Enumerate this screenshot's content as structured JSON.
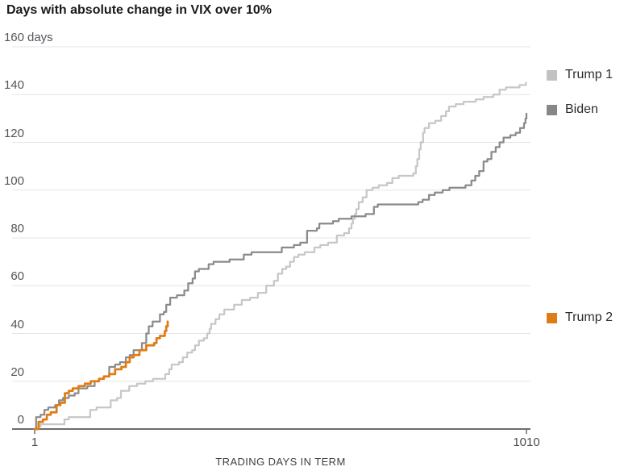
{
  "title": "Days with absolute change in VIX over 10%",
  "chart_data": {
    "type": "line",
    "line_style": "step-after",
    "title": "Days with absolute change in VIX over 10%",
    "xlabel": "TRADING DAYS IN TERM",
    "ylabel": "days",
    "xlim": [
      1,
      1010
    ],
    "ylim": [
      0,
      160
    ],
    "x_ticks": [
      1,
      1010
    ],
    "x_tick_labels": [
      "1",
      "1010"
    ],
    "y_ticks": [
      0,
      20,
      40,
      60,
      80,
      100,
      120,
      140,
      160
    ],
    "y_top_label": "160 days",
    "y_unit_suffix": "days",
    "grid": "horizontal",
    "legend_position": "right",
    "axis_color": "#6d6d6d",
    "grid_color": "#e5e5e5",
    "series": [
      {
        "name": "Trump 1",
        "color": "#c7c7c7",
        "stroke_width": 2.25,
        "points": [
          [
            1,
            0
          ],
          [
            9,
            1
          ],
          [
            13,
            2
          ],
          [
            54,
            2
          ],
          [
            62,
            4
          ],
          [
            71,
            5
          ],
          [
            107,
            5
          ],
          [
            115,
            8
          ],
          [
            128,
            9
          ],
          [
            148,
            9
          ],
          [
            157,
            12
          ],
          [
            170,
            13
          ],
          [
            178,
            16
          ],
          [
            195,
            18
          ],
          [
            211,
            19
          ],
          [
            228,
            20
          ],
          [
            244,
            21
          ],
          [
            269,
            23
          ],
          [
            277,
            25
          ],
          [
            282,
            27
          ],
          [
            297,
            28
          ],
          [
            305,
            30
          ],
          [
            314,
            32
          ],
          [
            324,
            33
          ],
          [
            330,
            35
          ],
          [
            338,
            37
          ],
          [
            348,
            38
          ],
          [
            355,
            40
          ],
          [
            360,
            42
          ],
          [
            363,
            44
          ],
          [
            372,
            46
          ],
          [
            380,
            48
          ],
          [
            390,
            50
          ],
          [
            410,
            52
          ],
          [
            426,
            54
          ],
          [
            443,
            55
          ],
          [
            459,
            57
          ],
          [
            476,
            60
          ],
          [
            492,
            62
          ],
          [
            500,
            65
          ],
          [
            509,
            67
          ],
          [
            517,
            68
          ],
          [
            525,
            70
          ],
          [
            533,
            72
          ],
          [
            542,
            73
          ],
          [
            555,
            74
          ],
          [
            575,
            76
          ],
          [
            587,
            77
          ],
          [
            603,
            78
          ],
          [
            621,
            81
          ],
          [
            636,
            82
          ],
          [
            646,
            84
          ],
          [
            651,
            86
          ],
          [
            654,
            88
          ],
          [
            658,
            90
          ],
          [
            661,
            92
          ],
          [
            666,
            95
          ],
          [
            674,
            97
          ],
          [
            682,
            100
          ],
          [
            694,
            101
          ],
          [
            707,
            102
          ],
          [
            724,
            103
          ],
          [
            735,
            105
          ],
          [
            748,
            106
          ],
          [
            778,
            107
          ],
          [
            783,
            110
          ],
          [
            786,
            113
          ],
          [
            790,
            117
          ],
          [
            793,
            120
          ],
          [
            798,
            124
          ],
          [
            801,
            126
          ],
          [
            810,
            128
          ],
          [
            823,
            129
          ],
          [
            835,
            131
          ],
          [
            845,
            133
          ],
          [
            851,
            135
          ],
          [
            865,
            136
          ],
          [
            881,
            137
          ],
          [
            906,
            138
          ],
          [
            922,
            139
          ],
          [
            942,
            140
          ],
          [
            955,
            142
          ],
          [
            968,
            143
          ],
          [
            988,
            143
          ],
          [
            996,
            144
          ],
          [
            1009,
            145
          ]
        ]
      },
      {
        "name": "Biden",
        "color": "#8b8b8b",
        "stroke_width": 2.25,
        "points": [
          [
            1,
            0
          ],
          [
            4,
            5
          ],
          [
            13,
            6
          ],
          [
            21,
            8
          ],
          [
            29,
            9
          ],
          [
            43,
            10
          ],
          [
            51,
            12
          ],
          [
            59,
            13
          ],
          [
            71,
            14
          ],
          [
            83,
            15
          ],
          [
            91,
            17
          ],
          [
            109,
            18
          ],
          [
            124,
            20
          ],
          [
            133,
            21
          ],
          [
            143,
            22
          ],
          [
            154,
            26
          ],
          [
            166,
            27
          ],
          [
            176,
            28
          ],
          [
            188,
            30
          ],
          [
            196,
            31
          ],
          [
            204,
            33
          ],
          [
            221,
            36
          ],
          [
            230,
            40
          ],
          [
            235,
            43
          ],
          [
            243,
            45
          ],
          [
            258,
            48
          ],
          [
            266,
            49
          ],
          [
            271,
            52
          ],
          [
            279,
            55
          ],
          [
            293,
            56
          ],
          [
            308,
            58
          ],
          [
            316,
            61
          ],
          [
            325,
            63
          ],
          [
            330,
            66
          ],
          [
            338,
            67
          ],
          [
            358,
            69
          ],
          [
            368,
            70
          ],
          [
            401,
            71
          ],
          [
            430,
            73
          ],
          [
            446,
            74
          ],
          [
            508,
            76
          ],
          [
            533,
            77
          ],
          [
            546,
            78
          ],
          [
            560,
            83
          ],
          [
            580,
            84
          ],
          [
            585,
            86
          ],
          [
            613,
            87
          ],
          [
            625,
            88
          ],
          [
            651,
            89
          ],
          [
            680,
            90
          ],
          [
            697,
            93
          ],
          [
            705,
            94
          ],
          [
            788,
            95
          ],
          [
            797,
            96
          ],
          [
            810,
            98
          ],
          [
            822,
            99
          ],
          [
            838,
            100
          ],
          [
            852,
            101
          ],
          [
            885,
            102
          ],
          [
            897,
            104
          ],
          [
            905,
            106
          ],
          [
            913,
            108
          ],
          [
            922,
            112
          ],
          [
            930,
            113
          ],
          [
            938,
            116
          ],
          [
            947,
            118
          ],
          [
            955,
            120
          ],
          [
            963,
            122
          ],
          [
            977,
            123
          ],
          [
            988,
            124
          ],
          [
            997,
            126
          ],
          [
            1005,
            128
          ],
          [
            1008,
            130
          ],
          [
            1010,
            132
          ]
        ]
      },
      {
        "name": "Trump 2",
        "color": "#e07c18",
        "stroke_width": 2.75,
        "points": [
          [
            1,
            0
          ],
          [
            9,
            3
          ],
          [
            18,
            4
          ],
          [
            26,
            6
          ],
          [
            34,
            7
          ],
          [
            46,
            10
          ],
          [
            54,
            11
          ],
          [
            63,
            15
          ],
          [
            71,
            16
          ],
          [
            79,
            17
          ],
          [
            91,
            18
          ],
          [
            104,
            19
          ],
          [
            116,
            20
          ],
          [
            133,
            21
          ],
          [
            143,
            22
          ],
          [
            154,
            23
          ],
          [
            166,
            25
          ],
          [
            179,
            26
          ],
          [
            188,
            28
          ],
          [
            196,
            30
          ],
          [
            204,
            31
          ],
          [
            216,
            33
          ],
          [
            230,
            35
          ],
          [
            246,
            36
          ],
          [
            251,
            38
          ],
          [
            258,
            39
          ],
          [
            268,
            41
          ],
          [
            271,
            43
          ],
          [
            274,
            45
          ]
        ]
      }
    ]
  },
  "legend": {
    "items": [
      {
        "label": "Trump 1",
        "color": "#c2c2c2"
      },
      {
        "label": "Biden",
        "color": "#878787"
      },
      {
        "label": "Trump 2",
        "color": "#e07c18"
      }
    ]
  }
}
